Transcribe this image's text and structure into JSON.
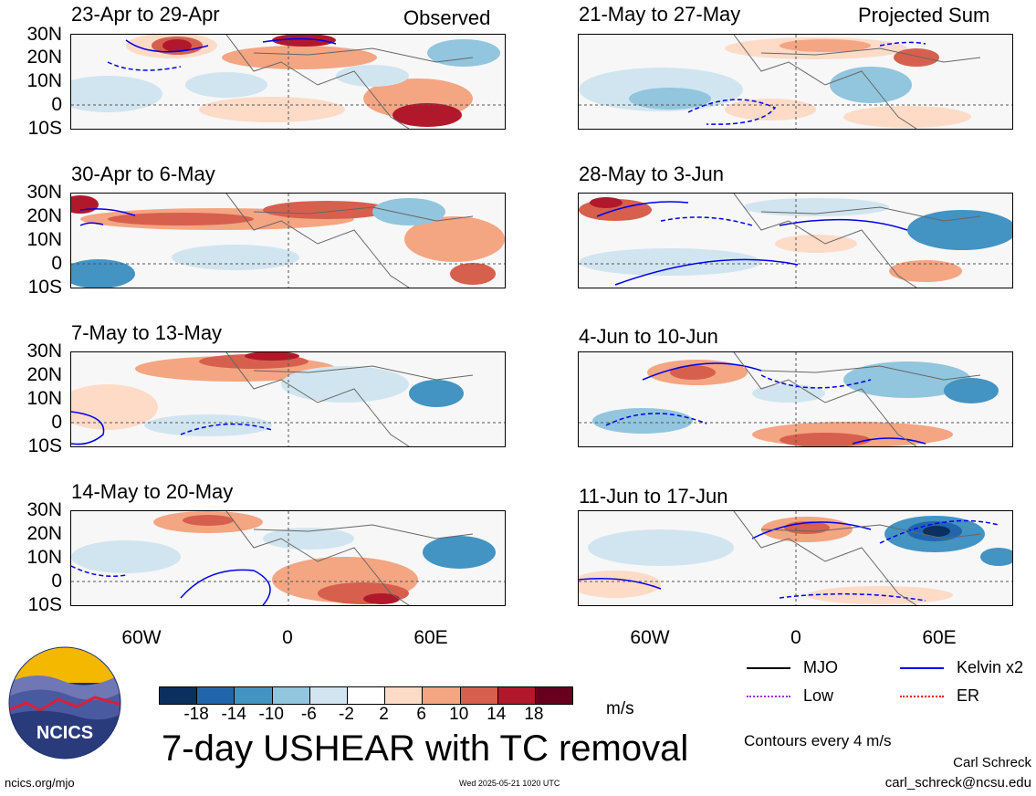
{
  "header": {
    "observed_label": "Observed",
    "projected_label": "Projected Sum"
  },
  "panels": [
    {
      "title": "23-Apr to 29-Apr",
      "column": "observed"
    },
    {
      "title": "30-Apr to 6-May",
      "column": "observed"
    },
    {
      "title": "7-May to 13-May",
      "column": "observed"
    },
    {
      "title": "14-May to 20-May",
      "column": "observed"
    },
    {
      "title": "21-May to 27-May",
      "column": "projected"
    },
    {
      "title": "28-May to 3-Jun",
      "column": "projected"
    },
    {
      "title": "4-Jun to 10-Jun",
      "column": "projected"
    },
    {
      "title": "11-Jun to 17-Jun",
      "column": "projected"
    }
  ],
  "axes": {
    "lat_ticks": [
      "30N",
      "20N",
      "10N",
      "0",
      "10S"
    ],
    "lon_ticks": [
      "60W",
      "0",
      "60E"
    ]
  },
  "colorbar": {
    "labels": [
      "-18",
      "-14",
      "-10",
      "-6",
      "-2",
      "2",
      "6",
      "10",
      "14",
      "18"
    ],
    "colors": [
      "#0b2f5e",
      "#2166ac",
      "#4393c3",
      "#92c5de",
      "#d1e5f0",
      "#ffffff",
      "#fddbc7",
      "#f4a582",
      "#d6604d",
      "#b2182b",
      "#67001f"
    ],
    "units": "m/s"
  },
  "product_title": "7-day USHEAR with TC removal",
  "legend": {
    "items": [
      {
        "label": "MJO",
        "color": "#000000"
      },
      {
        "label": "Kelvin x2",
        "color": "#0000ee"
      },
      {
        "label": "Low",
        "color": "#9932cc"
      },
      {
        "label": "ER",
        "color": "#ee0000"
      }
    ],
    "contour_note": "Contours every 4 m/s"
  },
  "footer": {
    "author": "Carl Schreck",
    "email": "carl_schreck@ncsu.edu",
    "site": "ncics.org/mjo",
    "timestamp": "Wed 2025-05-21 1020 UTC"
  },
  "logo": {
    "text": "NCICS"
  }
}
